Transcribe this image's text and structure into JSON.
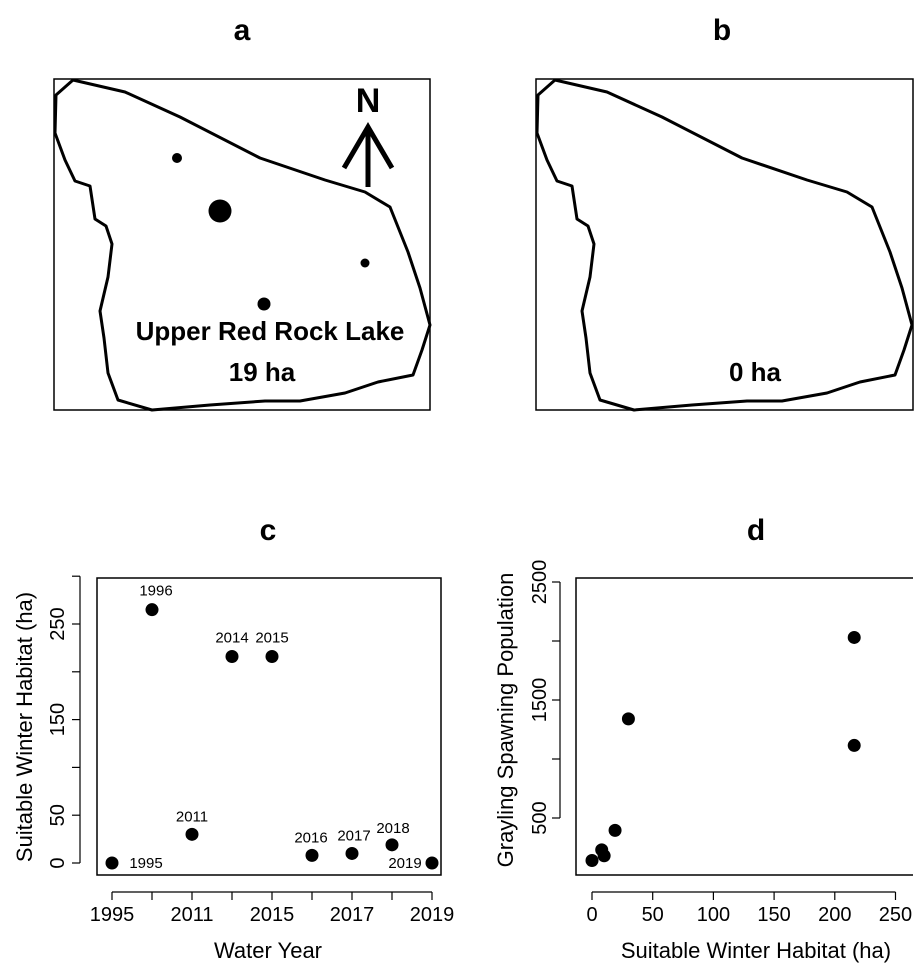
{
  "panels": {
    "a": {
      "title": "a",
      "lake_name": "Upper Red Rock Lake",
      "area_label": "19 ha",
      "north_label": "N"
    },
    "b": {
      "title": "b",
      "area_label": "0 ha"
    }
  },
  "chart_data": [
    {
      "panel": "c",
      "type": "scatter",
      "title": "c",
      "xlabel": "Water Year",
      "ylabel": "Suitable Winter Habitat (ha)",
      "x_categories": [
        "1995",
        "1996",
        "2011",
        "2014",
        "2015",
        "2016",
        "2017",
        "2018",
        "2019"
      ],
      "x_tick_labels": [
        "1995",
        "2011",
        "2015",
        "2017",
        "2019"
      ],
      "y_ticks": [
        0,
        50,
        150,
        250
      ],
      "ylim": [
        -5,
        310
      ],
      "points": [
        {
          "label": "1995",
          "y": 0
        },
        {
          "label": "1996",
          "y": 265
        },
        {
          "label": "2011",
          "y": 30
        },
        {
          "label": "2014",
          "y": 216
        },
        {
          "label": "2015",
          "y": 216
        },
        {
          "label": "2016",
          "y": 8
        },
        {
          "label": "2017",
          "y": 10
        },
        {
          "label": "2018",
          "y": 19
        },
        {
          "label": "2019",
          "y": 0
        }
      ]
    },
    {
      "panel": "d",
      "type": "scatter",
      "title": "d",
      "xlabel": "Suitable Winter Habitat (ha)",
      "ylabel": "Grayling Spawning Population",
      "x_ticks": [
        0,
        50,
        100,
        150,
        200,
        250
      ],
      "y_ticks": [
        500,
        1500,
        2500
      ],
      "xlim": [
        -10,
        270
      ],
      "ylim": [
        0,
        2620
      ],
      "points": [
        {
          "x": 0,
          "y": 140
        },
        {
          "x": 8,
          "y": 230
        },
        {
          "x": 10,
          "y": 180
        },
        {
          "x": 19,
          "y": 395
        },
        {
          "x": 30,
          "y": 1340
        },
        {
          "x": 216,
          "y": 2030
        },
        {
          "x": 216,
          "y": 1115
        }
      ]
    }
  ]
}
